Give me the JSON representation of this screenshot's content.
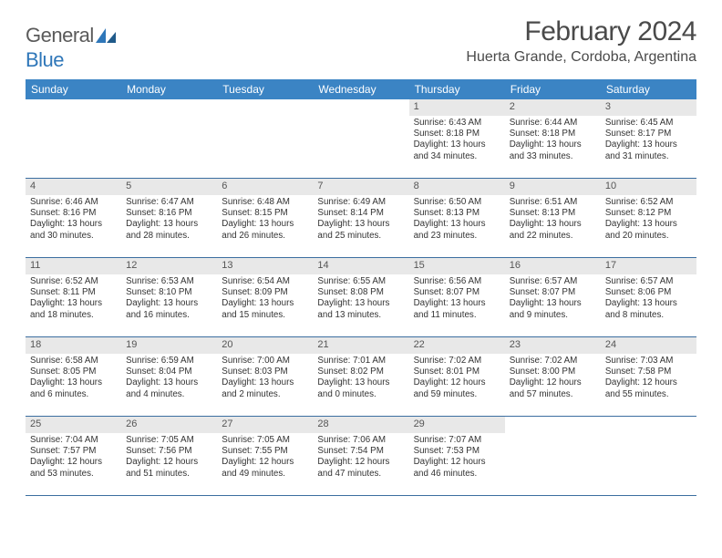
{
  "brand": {
    "part1": "General",
    "part2": "Blue"
  },
  "title": "February 2024",
  "location": "Huerta Grande, Cordoba, Argentina",
  "colors": {
    "header_bg": "#3b84c4",
    "week_divider": "#3b6ea0",
    "daynum_bg": "#e8e8e8",
    "brand_gray": "#5a5a5a",
    "brand_blue": "#2f77b9"
  },
  "weekdays": [
    "Sunday",
    "Monday",
    "Tuesday",
    "Wednesday",
    "Thursday",
    "Friday",
    "Saturday"
  ],
  "weeks": [
    [
      null,
      null,
      null,
      null,
      {
        "n": "1",
        "sr": "Sunrise: 6:43 AM",
        "ss": "Sunset: 8:18 PM",
        "d1": "Daylight: 13 hours",
        "d2": "and 34 minutes."
      },
      {
        "n": "2",
        "sr": "Sunrise: 6:44 AM",
        "ss": "Sunset: 8:18 PM",
        "d1": "Daylight: 13 hours",
        "d2": "and 33 minutes."
      },
      {
        "n": "3",
        "sr": "Sunrise: 6:45 AM",
        "ss": "Sunset: 8:17 PM",
        "d1": "Daylight: 13 hours",
        "d2": "and 31 minutes."
      }
    ],
    [
      {
        "n": "4",
        "sr": "Sunrise: 6:46 AM",
        "ss": "Sunset: 8:16 PM",
        "d1": "Daylight: 13 hours",
        "d2": "and 30 minutes."
      },
      {
        "n": "5",
        "sr": "Sunrise: 6:47 AM",
        "ss": "Sunset: 8:16 PM",
        "d1": "Daylight: 13 hours",
        "d2": "and 28 minutes."
      },
      {
        "n": "6",
        "sr": "Sunrise: 6:48 AM",
        "ss": "Sunset: 8:15 PM",
        "d1": "Daylight: 13 hours",
        "d2": "and 26 minutes."
      },
      {
        "n": "7",
        "sr": "Sunrise: 6:49 AM",
        "ss": "Sunset: 8:14 PM",
        "d1": "Daylight: 13 hours",
        "d2": "and 25 minutes."
      },
      {
        "n": "8",
        "sr": "Sunrise: 6:50 AM",
        "ss": "Sunset: 8:13 PM",
        "d1": "Daylight: 13 hours",
        "d2": "and 23 minutes."
      },
      {
        "n": "9",
        "sr": "Sunrise: 6:51 AM",
        "ss": "Sunset: 8:13 PM",
        "d1": "Daylight: 13 hours",
        "d2": "and 22 minutes."
      },
      {
        "n": "10",
        "sr": "Sunrise: 6:52 AM",
        "ss": "Sunset: 8:12 PM",
        "d1": "Daylight: 13 hours",
        "d2": "and 20 minutes."
      }
    ],
    [
      {
        "n": "11",
        "sr": "Sunrise: 6:52 AM",
        "ss": "Sunset: 8:11 PM",
        "d1": "Daylight: 13 hours",
        "d2": "and 18 minutes."
      },
      {
        "n": "12",
        "sr": "Sunrise: 6:53 AM",
        "ss": "Sunset: 8:10 PM",
        "d1": "Daylight: 13 hours",
        "d2": "and 16 minutes."
      },
      {
        "n": "13",
        "sr": "Sunrise: 6:54 AM",
        "ss": "Sunset: 8:09 PM",
        "d1": "Daylight: 13 hours",
        "d2": "and 15 minutes."
      },
      {
        "n": "14",
        "sr": "Sunrise: 6:55 AM",
        "ss": "Sunset: 8:08 PM",
        "d1": "Daylight: 13 hours",
        "d2": "and 13 minutes."
      },
      {
        "n": "15",
        "sr": "Sunrise: 6:56 AM",
        "ss": "Sunset: 8:07 PM",
        "d1": "Daylight: 13 hours",
        "d2": "and 11 minutes."
      },
      {
        "n": "16",
        "sr": "Sunrise: 6:57 AM",
        "ss": "Sunset: 8:07 PM",
        "d1": "Daylight: 13 hours",
        "d2": "and 9 minutes."
      },
      {
        "n": "17",
        "sr": "Sunrise: 6:57 AM",
        "ss": "Sunset: 8:06 PM",
        "d1": "Daylight: 13 hours",
        "d2": "and 8 minutes."
      }
    ],
    [
      {
        "n": "18",
        "sr": "Sunrise: 6:58 AM",
        "ss": "Sunset: 8:05 PM",
        "d1": "Daylight: 13 hours",
        "d2": "and 6 minutes."
      },
      {
        "n": "19",
        "sr": "Sunrise: 6:59 AM",
        "ss": "Sunset: 8:04 PM",
        "d1": "Daylight: 13 hours",
        "d2": "and 4 minutes."
      },
      {
        "n": "20",
        "sr": "Sunrise: 7:00 AM",
        "ss": "Sunset: 8:03 PM",
        "d1": "Daylight: 13 hours",
        "d2": "and 2 minutes."
      },
      {
        "n": "21",
        "sr": "Sunrise: 7:01 AM",
        "ss": "Sunset: 8:02 PM",
        "d1": "Daylight: 13 hours",
        "d2": "and 0 minutes."
      },
      {
        "n": "22",
        "sr": "Sunrise: 7:02 AM",
        "ss": "Sunset: 8:01 PM",
        "d1": "Daylight: 12 hours",
        "d2": "and 59 minutes."
      },
      {
        "n": "23",
        "sr": "Sunrise: 7:02 AM",
        "ss": "Sunset: 8:00 PM",
        "d1": "Daylight: 12 hours",
        "d2": "and 57 minutes."
      },
      {
        "n": "24",
        "sr": "Sunrise: 7:03 AM",
        "ss": "Sunset: 7:58 PM",
        "d1": "Daylight: 12 hours",
        "d2": "and 55 minutes."
      }
    ],
    [
      {
        "n": "25",
        "sr": "Sunrise: 7:04 AM",
        "ss": "Sunset: 7:57 PM",
        "d1": "Daylight: 12 hours",
        "d2": "and 53 minutes."
      },
      {
        "n": "26",
        "sr": "Sunrise: 7:05 AM",
        "ss": "Sunset: 7:56 PM",
        "d1": "Daylight: 12 hours",
        "d2": "and 51 minutes."
      },
      {
        "n": "27",
        "sr": "Sunrise: 7:05 AM",
        "ss": "Sunset: 7:55 PM",
        "d1": "Daylight: 12 hours",
        "d2": "and 49 minutes."
      },
      {
        "n": "28",
        "sr": "Sunrise: 7:06 AM",
        "ss": "Sunset: 7:54 PM",
        "d1": "Daylight: 12 hours",
        "d2": "and 47 minutes."
      },
      {
        "n": "29",
        "sr": "Sunrise: 7:07 AM",
        "ss": "Sunset: 7:53 PM",
        "d1": "Daylight: 12 hours",
        "d2": "and 46 minutes."
      },
      null,
      null
    ]
  ]
}
